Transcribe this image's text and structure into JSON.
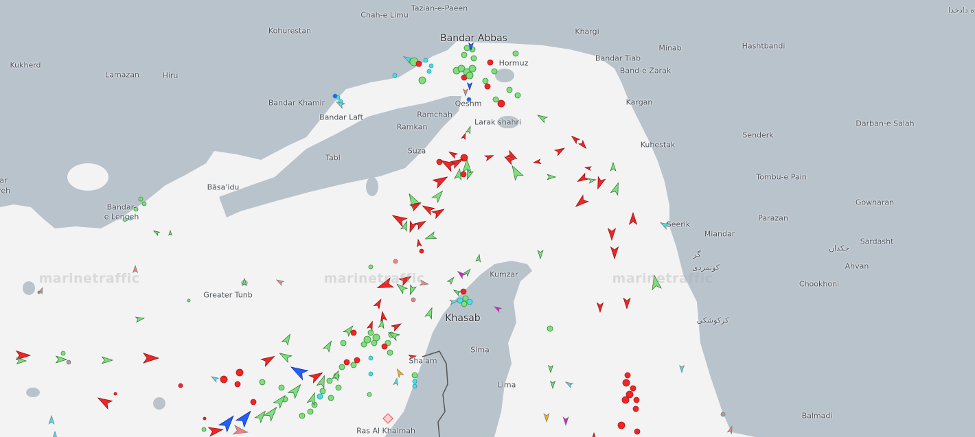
{
  "map": {
    "watermark": "marinetraffic",
    "colors": {
      "sea": "#f3f3f3",
      "land": "#b9c3cc",
      "cargo": "#7de07d",
      "tanker": "#f02525",
      "tug_special": "#44e0e8",
      "passenger": "#2060ff",
      "pleasure": "#d020d0",
      "high_speed": "#ffb000",
      "unknown": "#f08080"
    },
    "places": [
      "Chah-e Limu",
      "Tazian-e-Paeen",
      "Kohurestan",
      "Bandar Abbas",
      "Khargi",
      "Minab",
      "Hashtbandi",
      "Kukherd",
      "Lamazan",
      "Hiru",
      "Bandar Tiab",
      "Band-e Zarak",
      "Hormuz",
      "Bandar Khamir",
      "Qeshm",
      "Kargan",
      "Ramchah",
      "Bandar Laft",
      "Larak shahri",
      "Ramkan",
      "Darban-e Salah",
      "Senderk",
      "Kuhestak",
      "Suza",
      "Tabl",
      "Tombu-e Pain",
      "Bāsa'idu",
      "Bandar-",
      "e Lengeh",
      "Gowharan",
      "Seerik",
      "Parazan",
      "Miandar",
      "Sardasht",
      "Ahvan",
      "Chookhoni",
      "Kumzar",
      "Greater Tunb",
      "Khasab",
      "Sima",
      "Sha'am",
      "Lima",
      "Ras Al Khaimah",
      "Balmadi",
      "گر",
      "کونمردی",
      "کرکوشکی",
      "جکدان",
      "ه دادخدا",
      "ar",
      "yeh"
    ]
  }
}
